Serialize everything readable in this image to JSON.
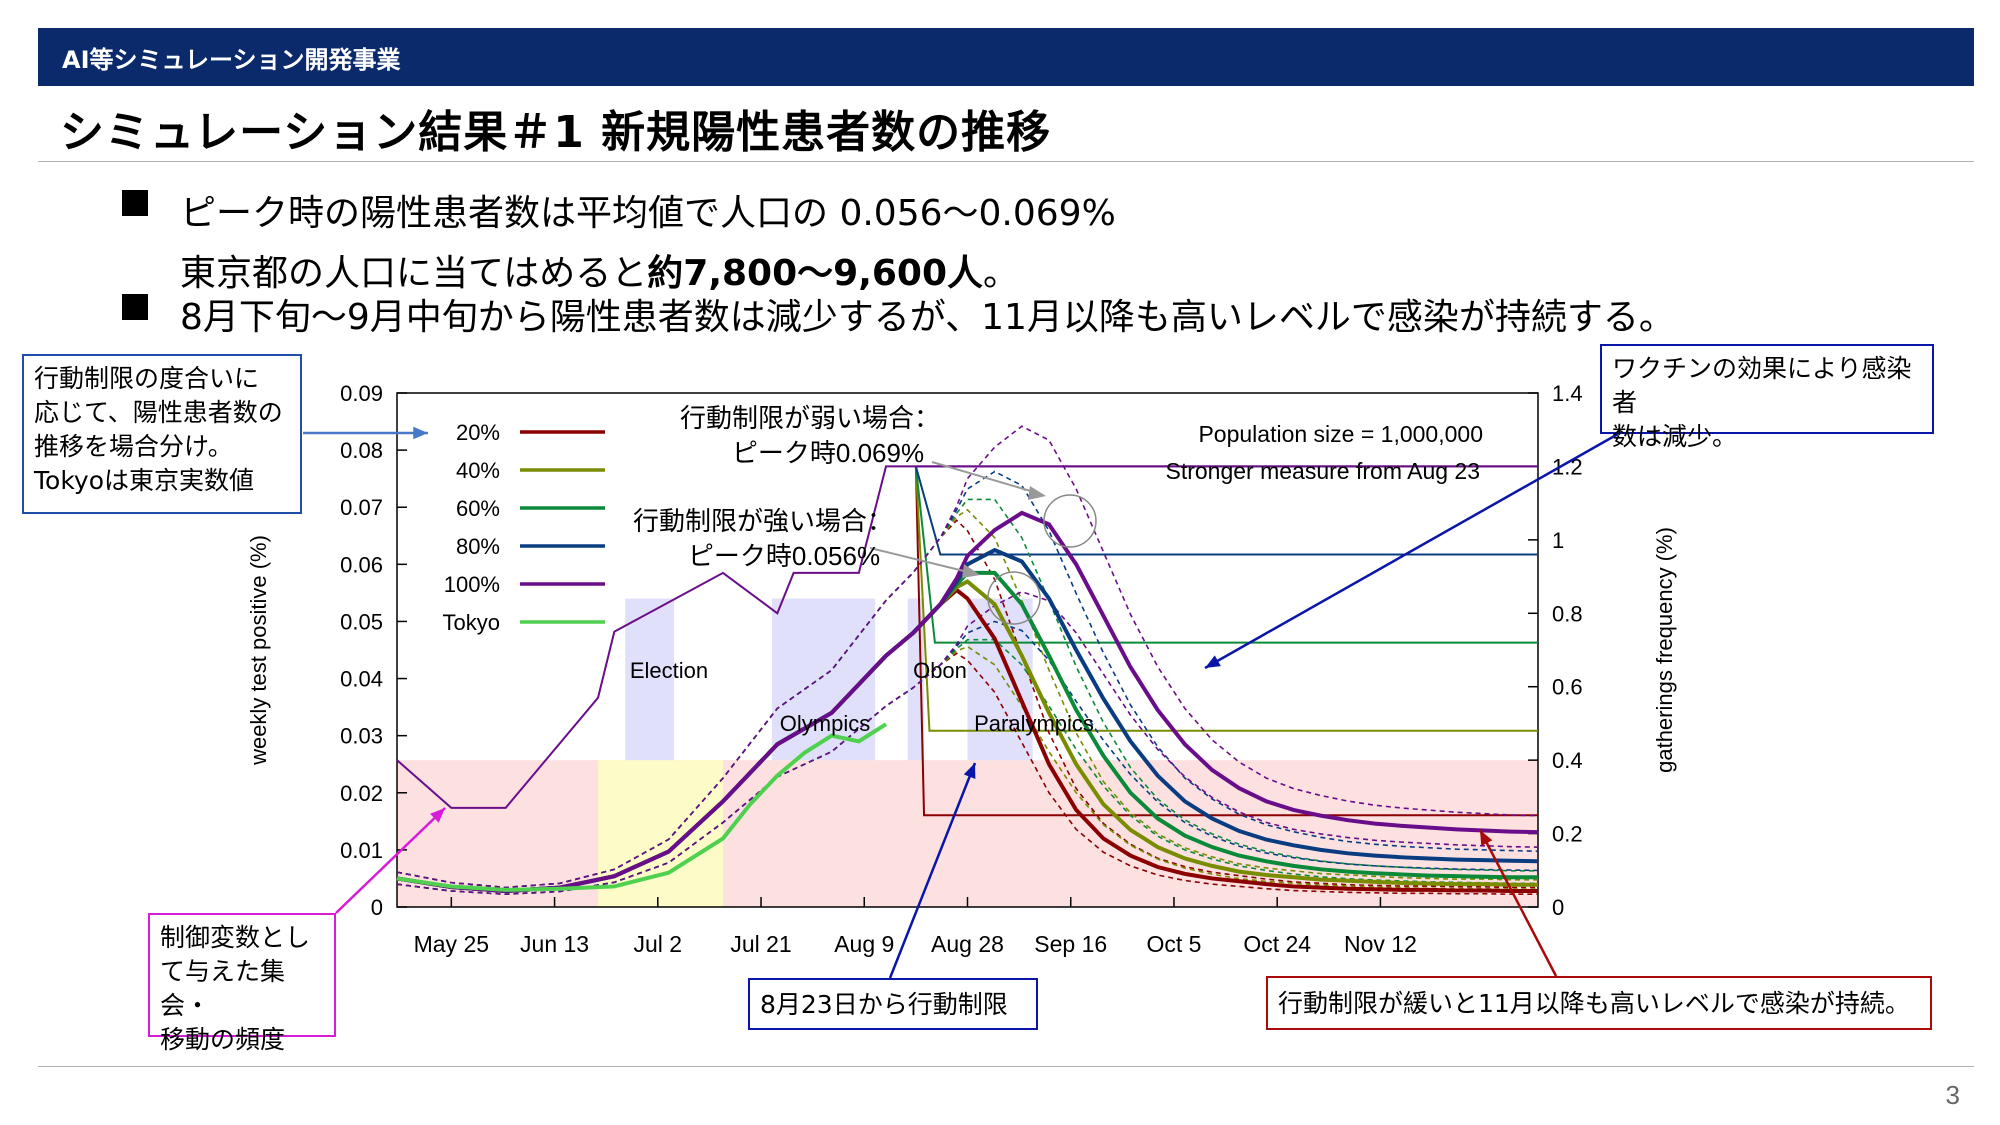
{
  "header": {
    "section": "AI等シミュレーション開発事業"
  },
  "slide": {
    "title": "シミュレーション結果＃1 新規陽性患者数の推移",
    "bullet1_line1": "ピーク時の陽性患者数は平均値で人口の 0.056～0.069%",
    "bullet1_line2_a": "東京都の人口に当てはめると",
    "bullet1_line2_b": "約7,800～9,600人",
    "bullet1_line2_c": "。",
    "bullet2": "8月下旬～9月中旬から陽性患者数は減少するが、11月以降も高いレベルで感染が持続する。",
    "page_number": "3"
  },
  "callouts": {
    "scenario": [
      "行動制限の度合いに",
      "応じて、陽性患者数の",
      "推移を場合分け。",
      "Tokyoは東京実数値"
    ],
    "vaccine": [
      "ワクチンの効果により感染者",
      "数は減少。"
    ],
    "control": [
      "制御変数とし",
      "て与えた集会・",
      "移動の頻度"
    ],
    "aug23": "8月23日から行動制限",
    "weak": "行動制限が緩いと11月以降も高いレベルで感染が持続。"
  },
  "colors": {
    "s20": "#8b0000",
    "s40": "#7a8c00",
    "s60": "#0b8a3a",
    "s80": "#0a3c82",
    "s100": "#6a0d8a",
    "tokyo": "#4fd14f",
    "header": "#0b2a6b",
    "pink": "#fde1e1",
    "yellow": "#fdfbc8",
    "lavender": "#e0e0fb",
    "box_blue": "#1f4ea8",
    "box_magenta": "#d81bd8",
    "box_navy": "#0a16a8",
    "box_red": "#a80a0a"
  },
  "chart_data": {
    "type": "line",
    "xlabels": [
      "May 25",
      "Jun 13",
      "Jul 2",
      "Jul 21",
      "Aug 9",
      "Aug 28",
      "Sep 16",
      "Oct 5",
      "Oct 24",
      "Nov 12"
    ],
    "ylabel": "weekly test positive (%)",
    "y2label": "gatherings frequency (%)",
    "yticks": [
      "0",
      "0.01",
      "0.02",
      "0.03",
      "0.04",
      "0.05",
      "0.06",
      "0.07",
      "0.08",
      "0.09"
    ],
    "y2ticks": [
      "0",
      "0.2",
      "0.4",
      "0.6",
      "0.8",
      "1",
      "1.2",
      "1.4"
    ],
    "ylim": [
      0,
      0.09
    ],
    "y2lim": [
      0,
      1.4
    ],
    "info": [
      "Population size = 1,000,000",
      "Stronger measure from Aug 23"
    ],
    "events": [
      "Election",
      "Obon",
      "Olympics",
      "Paralympics"
    ],
    "annotations": {
      "weak_1": "行動制限が弱い場合：",
      "weak_2": "ピーク時0.069%",
      "strong_1": "行動制限が強い場合：",
      "strong_2": "ピーク時0.056%"
    },
    "x_days": [
      0,
      10,
      20,
      30,
      40,
      50,
      60,
      70,
      80,
      90,
      95,
      100,
      103,
      105,
      110,
      115,
      120,
      125,
      130,
      135,
      140,
      145,
      150,
      155,
      160,
      165,
      170,
      175,
      180,
      185,
      190,
      195,
      200,
      205,
      210
    ],
    "series": [
      {
        "name": "20%",
        "color": "#8b0000",
        "values": [
          0.005,
          0.0035,
          0.0028,
          0.0034,
          0.0054,
          0.0097,
          0.0185,
          0.0285,
          0.034,
          0.044,
          0.048,
          0.053,
          0.0555,
          0.054,
          0.047,
          0.036,
          0.025,
          0.017,
          0.012,
          0.009,
          0.007,
          0.0058,
          0.005,
          0.0045,
          0.004,
          0.0036,
          0.0034,
          0.0032,
          0.0031,
          0.003,
          0.003,
          0.0029,
          0.0029,
          0.0028,
          0.0028
        ]
      },
      {
        "name": "40%",
        "color": "#7a8c00",
        "values": [
          0.005,
          0.0035,
          0.0028,
          0.0034,
          0.0054,
          0.0097,
          0.0185,
          0.0285,
          0.034,
          0.044,
          0.048,
          0.053,
          0.056,
          0.057,
          0.053,
          0.044,
          0.034,
          0.025,
          0.018,
          0.0135,
          0.0105,
          0.0085,
          0.0072,
          0.0062,
          0.0056,
          0.0052,
          0.0048,
          0.0046,
          0.0044,
          0.0042,
          0.0041,
          0.004,
          0.004,
          0.0039,
          0.0039
        ]
      },
      {
        "name": "60%",
        "color": "#0b8a3a",
        "values": [
          0.005,
          0.0035,
          0.0028,
          0.0034,
          0.0054,
          0.0097,
          0.0185,
          0.0285,
          0.034,
          0.044,
          0.048,
          0.053,
          0.0565,
          0.0585,
          0.0585,
          0.053,
          0.044,
          0.0345,
          0.0265,
          0.02,
          0.0155,
          0.0125,
          0.0105,
          0.009,
          0.008,
          0.0072,
          0.0066,
          0.0062,
          0.0059,
          0.0057,
          0.0055,
          0.0054,
          0.0053,
          0.0052,
          0.0052
        ]
      },
      {
        "name": "80%",
        "color": "#0a3c82",
        "values": [
          0.005,
          0.0035,
          0.0028,
          0.0034,
          0.0054,
          0.0097,
          0.0185,
          0.0285,
          0.034,
          0.044,
          0.048,
          0.053,
          0.057,
          0.06,
          0.0625,
          0.0605,
          0.054,
          0.045,
          0.0365,
          0.029,
          0.023,
          0.0185,
          0.0155,
          0.0133,
          0.0118,
          0.0108,
          0.01,
          0.0094,
          0.009,
          0.0087,
          0.0085,
          0.0083,
          0.0082,
          0.0081,
          0.008
        ]
      },
      {
        "name": "100%",
        "color": "#6a0d8a",
        "values": [
          0.005,
          0.0035,
          0.0028,
          0.0034,
          0.0054,
          0.0097,
          0.0185,
          0.0285,
          0.034,
          0.044,
          0.048,
          0.053,
          0.0575,
          0.0615,
          0.066,
          0.069,
          0.067,
          0.06,
          0.051,
          0.042,
          0.0345,
          0.0285,
          0.024,
          0.0208,
          0.0185,
          0.017,
          0.016,
          0.0152,
          0.0146,
          0.0142,
          0.0139,
          0.0136,
          0.0134,
          0.0132,
          0.0131
        ]
      }
    ],
    "tokyo": {
      "name": "Tokyo",
      "x_days": [
        0,
        10,
        20,
        30,
        40,
        50,
        60,
        65,
        70,
        75,
        80,
        85,
        90
      ],
      "values": [
        0.005,
        0.0036,
        0.003,
        0.0032,
        0.0036,
        0.006,
        0.012,
        0.018,
        0.023,
        0.027,
        0.03,
        0.029,
        0.032
      ]
    },
    "gatherings": [
      {
        "name": "20%",
        "after": 0.25
      },
      {
        "name": "40%",
        "after": 0.48
      },
      {
        "name": "60%",
        "after": 0.72
      },
      {
        "name": "80%",
        "after": 0.96
      },
      {
        "name": "100%",
        "after": 1.2
      }
    ],
    "gatherings_before": {
      "x_days": [
        0,
        10,
        20,
        37,
        40,
        60,
        70,
        73,
        85,
        90,
        95,
        95.5,
        105,
        210
      ],
      "values": [
        0.4,
        0.27,
        0.27,
        0.57,
        0.75,
        0.91,
        0.8,
        0.91,
        0.91,
        1.2,
        1.2,
        1.2,
        1.2,
        1.2
      ]
    }
  }
}
